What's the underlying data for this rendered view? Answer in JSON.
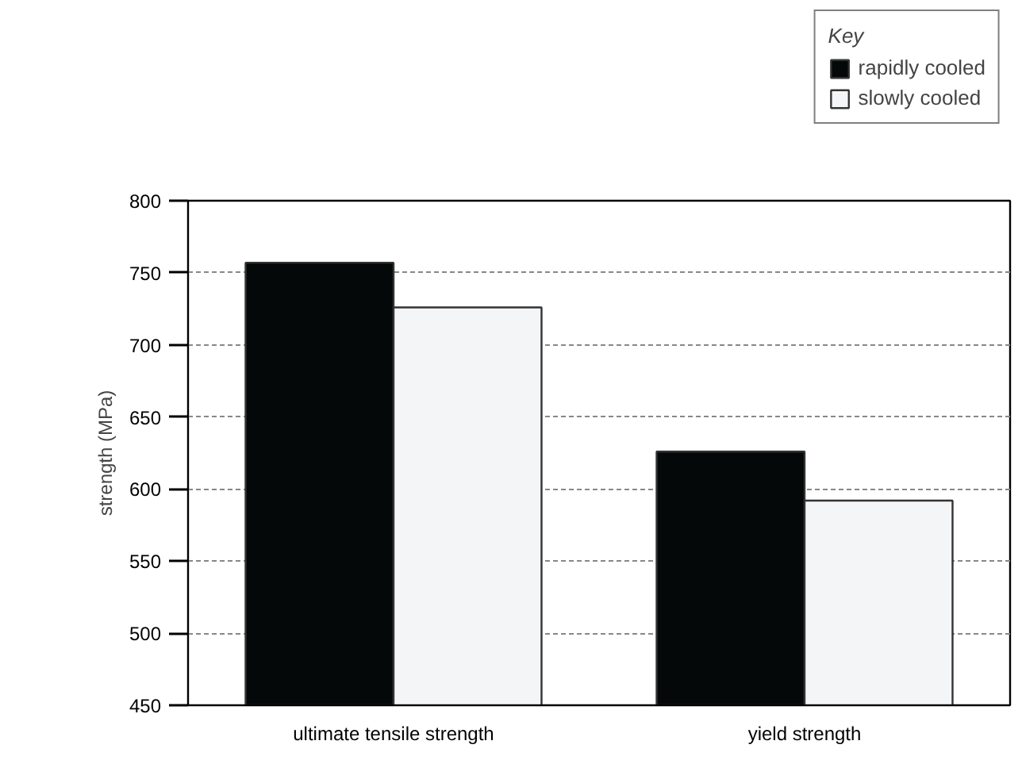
{
  "chart_data": {
    "type": "bar",
    "ylabel": "strength (MPa)",
    "legend_title": "Key",
    "categories": [
      "ultimate tensile strength",
      "yield strength"
    ],
    "series": [
      {
        "name": "rapidly cooled",
        "color": "#050808",
        "values": [
          757,
          626
        ]
      },
      {
        "name": "slowly cooled",
        "color": "#f4f5f7",
        "values": [
          726,
          592
        ]
      }
    ],
    "ylim": [
      450,
      800
    ],
    "yticks": [
      450,
      500,
      550,
      600,
      650,
      700,
      750,
      800
    ],
    "grid": "y",
    "legend": "top right"
  }
}
